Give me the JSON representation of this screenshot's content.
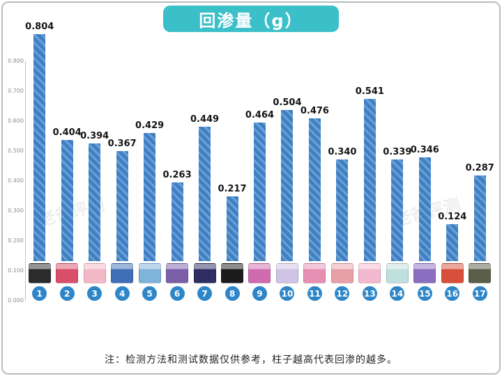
{
  "header": {
    "title": "回渗量（g）"
  },
  "footer": {
    "note": "注：检测方法和测试数据仅供参考，柱子越高代表回渗的越多。"
  },
  "watermark": {
    "text": "老爸评测"
  },
  "colors": {
    "title_bg": "#3bbfc8",
    "bar_fill": "#3f80c2",
    "bar_stripe": "#6ba0d8",
    "circle_bg": "#2e86c8",
    "value_text": "#141414",
    "tick_text": "#8c8c8c",
    "note_text": "#222222"
  },
  "chart_data": {
    "type": "bar",
    "title": "回渗量（g）",
    "xlabel": "",
    "ylabel": "",
    "ylim": [
      0,
      0.8
    ],
    "grid": false,
    "legend": "none",
    "categories": [
      "1",
      "2",
      "3",
      "4",
      "5",
      "6",
      "7",
      "8",
      "9",
      "10",
      "11",
      "12",
      "13",
      "14",
      "15",
      "16",
      "17"
    ],
    "values": [
      0.804,
      0.404,
      0.394,
      0.367,
      0.429,
      0.263,
      0.449,
      0.217,
      0.464,
      0.504,
      0.476,
      0.34,
      0.541,
      0.339,
      0.346,
      0.124,
      0.287
    ],
    "value_labels": [
      "0.804",
      "0.404",
      "0.394",
      "0.367",
      "0.429",
      "0.263",
      "0.449",
      "0.217",
      "0.464",
      "0.504",
      "0.476",
      "0.340",
      "0.541",
      "0.339",
      "0.346",
      "0.124",
      "0.287"
    ],
    "yticks": [
      "0.800",
      "0.700",
      "0.600",
      "0.500",
      "0.400",
      "0.300",
      "0.200",
      "0.100",
      "0.000"
    ]
  },
  "products": [
    {
      "index": "1",
      "color": "#2b2b2b"
    },
    {
      "index": "2",
      "color": "#d94f6a"
    },
    {
      "index": "3",
      "color": "#f2b8c6"
    },
    {
      "index": "4",
      "color": "#3f6fb5"
    },
    {
      "index": "5",
      "color": "#7fb3d9"
    },
    {
      "index": "6",
      "color": "#7a5fa8"
    },
    {
      "index": "7",
      "color": "#2f2d63"
    },
    {
      "index": "8",
      "color": "#1c1c1c"
    },
    {
      "index": "9",
      "color": "#d06bb0"
    },
    {
      "index": "10",
      "color": "#cfc3e6"
    },
    {
      "index": "11",
      "color": "#e78fb3"
    },
    {
      "index": "12",
      "color": "#e8a0a8"
    },
    {
      "index": "13",
      "color": "#f3b9cf"
    },
    {
      "index": "14",
      "color": "#bfe0dc"
    },
    {
      "index": "15",
      "color": "#8a6fc0"
    },
    {
      "index": "16",
      "color": "#d9503a"
    },
    {
      "index": "17",
      "color": "#5a5f4a"
    }
  ]
}
